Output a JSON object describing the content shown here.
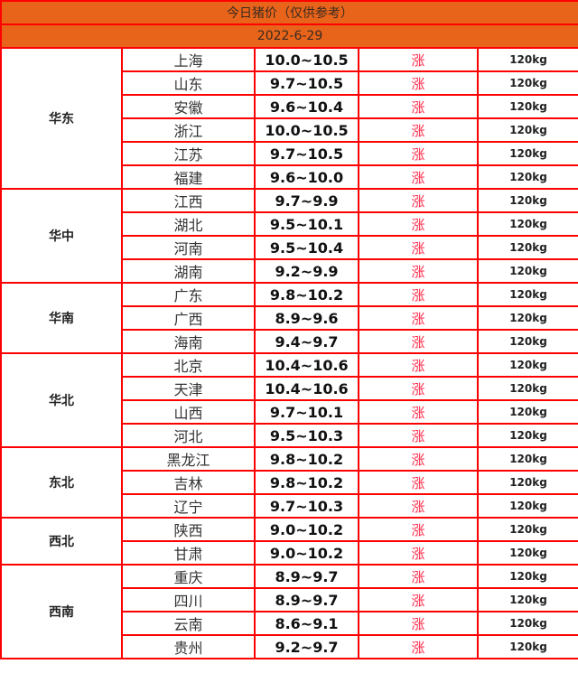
{
  "title": "今日猪价（仅供参考）",
  "date": "2022-6-29",
  "colors": {
    "header_bg": "#e8641a",
    "border": "#ff0000",
    "trend": "#ff2a4a"
  },
  "regions": [
    {
      "name": "华东",
      "rows": [
        {
          "province": "上海",
          "price": "10.0~10.5",
          "trend": "涨",
          "weight": "120kg"
        },
        {
          "province": "山东",
          "price": "9.7~10.5",
          "trend": "涨",
          "weight": "120kg"
        },
        {
          "province": "安徽",
          "price": "9.6~10.4",
          "trend": "涨",
          "weight": "120kg"
        },
        {
          "province": "浙江",
          "price": "10.0~10.5",
          "trend": "涨",
          "weight": "120kg"
        },
        {
          "province": "江苏",
          "price": "9.7~10.5",
          "trend": "涨",
          "weight": "120kg"
        },
        {
          "province": "福建",
          "price": "9.6~10.0",
          "trend": "涨",
          "weight": "120kg"
        }
      ]
    },
    {
      "name": "华中",
      "rows": [
        {
          "province": "江西",
          "price": "9.7~9.9",
          "trend": "涨",
          "weight": "120kg"
        },
        {
          "province": "湖北",
          "price": "9.5~10.1",
          "trend": "涨",
          "weight": "120kg"
        },
        {
          "province": "河南",
          "price": "9.5~10.4",
          "trend": "涨",
          "weight": "120kg"
        },
        {
          "province": "湖南",
          "price": "9.2~9.9",
          "trend": "涨",
          "weight": "120kg"
        }
      ]
    },
    {
      "name": "华南",
      "rows": [
        {
          "province": "广东",
          "price": "9.8~10.2",
          "trend": "涨",
          "weight": "120kg"
        },
        {
          "province": "广西",
          "price": "8.9~9.6",
          "trend": "涨",
          "weight": "120kg"
        },
        {
          "province": "海南",
          "price": "9.4~9.7",
          "trend": "涨",
          "weight": "120kg"
        }
      ]
    },
    {
      "name": "华北",
      "rows": [
        {
          "province": "北京",
          "price": "10.4~10.6",
          "trend": "涨",
          "weight": "120kg"
        },
        {
          "province": "天津",
          "price": "10.4~10.6",
          "trend": "涨",
          "weight": "120kg"
        },
        {
          "province": "山西",
          "price": "9.7~10.1",
          "trend": "涨",
          "weight": "120kg"
        },
        {
          "province": "河北",
          "price": "9.5~10.3",
          "trend": "涨",
          "weight": "120kg"
        }
      ]
    },
    {
      "name": "东北",
      "rows": [
        {
          "province": "黑龙江",
          "price": "9.8~10.2",
          "trend": "涨",
          "weight": "120kg"
        },
        {
          "province": "吉林",
          "price": "9.8~10.2",
          "trend": "涨",
          "weight": "120kg"
        },
        {
          "province": "辽宁",
          "price": "9.7~10.3",
          "trend": "涨",
          "weight": "120kg"
        }
      ]
    },
    {
      "name": "西北",
      "rows": [
        {
          "province": "陕西",
          "price": "9.0~10.2",
          "trend": "涨",
          "weight": "120kg"
        },
        {
          "province": "甘肃",
          "price": "9.0~10.2",
          "trend": "涨",
          "weight": "120kg"
        }
      ]
    },
    {
      "name": "西南",
      "rows": [
        {
          "province": "重庆",
          "price": "8.9~9.7",
          "trend": "涨",
          "weight": "120kg"
        },
        {
          "province": "四川",
          "price": "8.9~9.7",
          "trend": "涨",
          "weight": "120kg"
        },
        {
          "province": "云南",
          "price": "8.6~9.1",
          "trend": "涨",
          "weight": "120kg"
        },
        {
          "province": "贵州",
          "price": "9.2~9.7",
          "trend": "涨",
          "weight": "120kg"
        }
      ]
    }
  ]
}
